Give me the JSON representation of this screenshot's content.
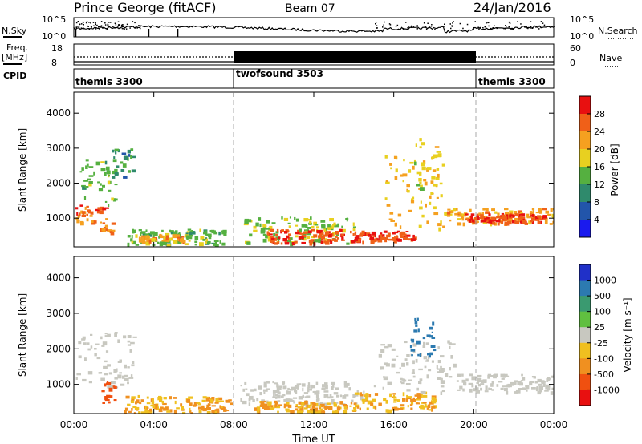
{
  "header": {
    "station": "Prince George (fitACF)",
    "beam": "Beam 07",
    "date": "24/Jan/2016"
  },
  "noise_panel": {
    "left_label": "N.Sky",
    "right_label": "N.Search",
    "ticks": [
      "10^5",
      "10^0"
    ]
  },
  "freq_panel": {
    "left_label_line1": "Freq.",
    "left_label_line2": "[MHz]",
    "left_ticks": [
      "18",
      "8"
    ],
    "right_label": "Nave",
    "right_ticks": [
      "60",
      "0"
    ]
  },
  "cpid_panel": {
    "label": "CPID",
    "segments": [
      {
        "name": "themis 3300",
        "start_hr": 0,
        "end_hr": 8
      },
      {
        "name": "twofsound 3503",
        "start_hr": 8,
        "end_hr": 20
      },
      {
        "name": "themis 3300",
        "start_hr": 20,
        "end_hr": 24
      }
    ]
  },
  "x_axis": {
    "label": "Time UT",
    "ticks": [
      "00:00",
      "04:00",
      "08:00",
      "12:00",
      "16:00",
      "20:00",
      "00:00"
    ]
  },
  "power_panel": {
    "ylabel": "Slant Range [km]",
    "yticks": [
      "1000",
      "2000",
      "3000",
      "4000"
    ],
    "colorbar_label": "Power [dB]",
    "colorbar_ticks": [
      "4",
      "8",
      "12",
      "16",
      "20",
      "24",
      "28"
    ]
  },
  "velocity_panel": {
    "ylabel": "Slant Range [km]",
    "yticks": [
      "1000",
      "2000",
      "3000",
      "4000"
    ],
    "colorbar_label": "Velocity [m s⁻¹]",
    "colorbar_ticks": [
      "1000",
      "500",
      "100",
      "25",
      "-25",
      "-100",
      "-500",
      "-1000"
    ]
  },
  "chart_data": [
    {
      "type": "heatmap",
      "title": "Power",
      "xlabel": "Time UT",
      "ylabel": "Slant Range [km]",
      "xlim_hr": [
        0,
        24
      ],
      "ylim_km": [
        180,
        4600
      ],
      "colorbar": {
        "label": "Power [dB]",
        "ticks": [
          4,
          8,
          12,
          16,
          20,
          24,
          28
        ],
        "colors": [
          "#1a1aee",
          "#2255aa",
          "#2f8a6c",
          "#55b040",
          "#e8d020",
          "#f5a020",
          "#f06018",
          "#e81010"
        ]
      },
      "regions": [
        {
          "t0": 0.0,
          "t1": 1.6,
          "r0": 900,
          "r1": 1400,
          "level": 26
        },
        {
          "t0": 0.3,
          "t1": 2.2,
          "r0": 1400,
          "r1": 2700,
          "level": 14
        },
        {
          "t0": 1.8,
          "t1": 2.9,
          "r0": 2200,
          "r1": 3150,
          "level": 10
        },
        {
          "t0": 1.3,
          "t1": 1.9,
          "r0": 600,
          "r1": 950,
          "level": 24
        },
        {
          "t0": 2.5,
          "t1": 7.5,
          "r0": 250,
          "r1": 700,
          "level": 14
        },
        {
          "t0": 3.2,
          "t1": 5.5,
          "r0": 350,
          "r1": 550,
          "level": 22
        },
        {
          "t0": 8.5,
          "t1": 14.0,
          "r0": 300,
          "r1": 1050,
          "level": 16
        },
        {
          "t0": 9.5,
          "t1": 13.5,
          "r0": 300,
          "r1": 700,
          "level": 28
        },
        {
          "t0": 13.8,
          "t1": 17.0,
          "r0": 350,
          "r1": 650,
          "level": 28
        },
        {
          "t0": 15.5,
          "t1": 18.5,
          "r0": 700,
          "r1": 2900,
          "level": 20
        },
        {
          "t0": 17.0,
          "t1": 18.2,
          "r0": 1800,
          "r1": 3300,
          "level": 18
        },
        {
          "t0": 18.5,
          "t1": 24.0,
          "r0": 850,
          "r1": 1300,
          "level": 22
        },
        {
          "t0": 19.5,
          "t1": 23.5,
          "r0": 900,
          "r1": 1150,
          "level": 28
        }
      ]
    },
    {
      "type": "heatmap",
      "title": "Velocity",
      "xlabel": "Time UT",
      "ylabel": "Slant Range [km]",
      "xlim_hr": [
        0,
        24
      ],
      "ylim_km": [
        180,
        4600
      ],
      "colorbar": {
        "label": "Velocity [m s⁻¹]",
        "ticks": [
          1000,
          500,
          100,
          25,
          -25,
          -100,
          -500,
          -1000
        ],
        "colors": [
          "#2030c8",
          "#2c7ab0",
          "#3a9a70",
          "#60c040",
          "#c8c8c0",
          "#f0c020",
          "#f09020",
          "#f05010",
          "#e81010"
        ]
      },
      "regions": [
        {
          "t0": 0.0,
          "t1": 3.0,
          "r0": 900,
          "r1": 2500,
          "value": 0
        },
        {
          "t0": 1.3,
          "t1": 2.0,
          "r0": 500,
          "r1": 1100,
          "value": -500
        },
        {
          "t0": 2.5,
          "t1": 7.8,
          "r0": 220,
          "r1": 700,
          "value": -100
        },
        {
          "t0": 8.3,
          "t1": 14.5,
          "r0": 450,
          "r1": 1100,
          "value": 0
        },
        {
          "t0": 9.0,
          "t1": 14.0,
          "r0": 250,
          "r1": 550,
          "value": -100
        },
        {
          "t0": 14.0,
          "t1": 18.0,
          "r0": 300,
          "r1": 800,
          "value": -100
        },
        {
          "t0": 15.0,
          "t1": 19.0,
          "r0": 800,
          "r1": 2300,
          "value": 0
        },
        {
          "t0": 16.8,
          "t1": 18.0,
          "r0": 1800,
          "r1": 3000,
          "value": 500
        },
        {
          "t0": 19.0,
          "t1": 24.0,
          "r0": 800,
          "r1": 1300,
          "value": 0
        }
      ]
    }
  ]
}
